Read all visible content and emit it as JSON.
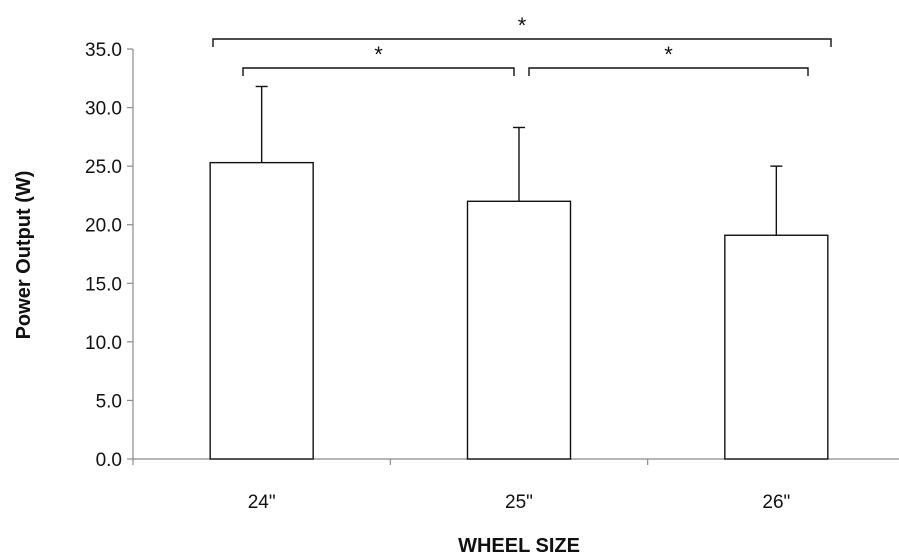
{
  "chart_data": {
    "type": "bar",
    "categories": [
      "24\"",
      "25\"",
      "26\""
    ],
    "values": [
      25.3,
      22.0,
      19.1
    ],
    "error_upper": [
      6.5,
      6.3,
      5.9
    ],
    "xlabel": "WHEEL SIZE",
    "ylabel": "Power Output (W)",
    "ylim": [
      0,
      35
    ],
    "y_ticks": [
      "0.0",
      "5.0",
      "10.0",
      "15.0",
      "20.0",
      "25.0",
      "30.0",
      "35.0"
    ],
    "grid": false,
    "legend": "none",
    "bar_fill": "#ffffff",
    "bar_stroke": "#111111",
    "significance": [
      {
        "from": 0,
        "to": 2,
        "label": "*"
      },
      {
        "from": 0,
        "to": 1,
        "label": "*"
      },
      {
        "from": 1,
        "to": 2,
        "label": "*"
      }
    ]
  }
}
